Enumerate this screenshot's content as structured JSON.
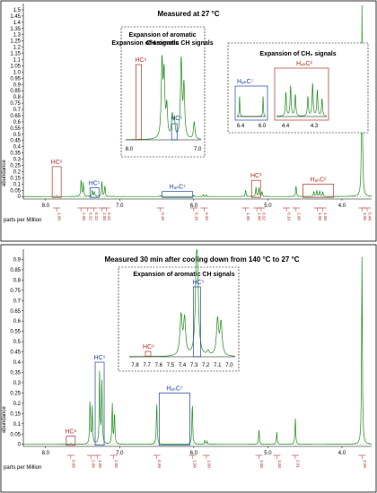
{
  "chart_data": [
    {
      "type": "line",
      "title": "Measured at 27 °C",
      "xlabel": "parts per Million",
      "ylabel": "abundance",
      "xlim": [
        8.3,
        3.6
      ],
      "ylim": [
        -0.02,
        1.55
      ],
      "x_ticks": [
        "8.0",
        "7.0",
        "6.0",
        "5.0",
        "4.0"
      ],
      "y_ticks": [
        "0",
        "0.05",
        "0.1",
        "0.15",
        "0.2",
        "0.25",
        "0.3",
        "0.35",
        "0.4",
        "0.45",
        "0.5",
        "0.55",
        "0.6",
        "0.65",
        "0.7",
        "0.75",
        "0.8",
        "0.85",
        "0.9",
        "0.95",
        "1.0",
        "1.05",
        "1.1",
        "1.15",
        "1.2",
        "1.25",
        "1.3",
        "1.35",
        "1.4",
        "1.45",
        "1.5"
      ],
      "peaks": [
        {
          "x": 7.85,
          "y": 0.005
        },
        {
          "x": 7.52,
          "y": 0.14
        },
        {
          "x": 7.49,
          "y": 0.11
        },
        {
          "x": 7.37,
          "y": 0.05
        },
        {
          "x": 7.34,
          "y": 0.04
        },
        {
          "x": 7.24,
          "y": 0.12
        },
        {
          "x": 7.2,
          "y": 0.09
        },
        {
          "x": 6.45,
          "y": 0.01
        },
        {
          "x": 6.0,
          "y": 0.012
        },
        {
          "x": 5.87,
          "y": 0.015
        },
        {
          "x": 5.83,
          "y": 0.012
        },
        {
          "x": 5.3,
          "y": 0.055
        },
        {
          "x": 5.16,
          "y": 0.08
        },
        {
          "x": 5.12,
          "y": 0.07
        },
        {
          "x": 5.08,
          "y": 0.04
        },
        {
          "x": 4.62,
          "y": 0.09
        },
        {
          "x": 4.38,
          "y": 0.04
        },
        {
          "x": 4.34,
          "y": 0.05
        },
        {
          "x": 4.3,
          "y": 0.045
        },
        {
          "x": 4.26,
          "y": 0.04
        },
        {
          "x": 3.73,
          "y": 1.55
        }
      ],
      "labels": [
        {
          "text": "HC⁶",
          "x": 7.85,
          "y": 0.24,
          "color": "red"
        },
        {
          "text": "HC⁵",
          "x": 7.34,
          "y": 0.07,
          "color": "blue"
        },
        {
          "text": "HₐₕC⁷",
          "x": 6.22,
          "y": 0.04,
          "color": "blue"
        },
        {
          "text": "HC³",
          "x": 5.16,
          "y": 0.13,
          "color": "red"
        },
        {
          "text": "HₐₕC²",
          "x": 4.32,
          "y": 0.1,
          "color": "red"
        }
      ],
      "integrals": [
        {
          "x": 7.85,
          "label": "1.00"
        },
        {
          "x": 7.52,
          "label": "2.00"
        },
        {
          "x": 7.43,
          "label": "0.32"
        },
        {
          "x": 7.35,
          "label": "0.32"
        },
        {
          "x": 7.24,
          "label": "2.00"
        },
        {
          "x": 7.18,
          "label": "0.32"
        },
        {
          "x": 6.45,
          "label": "0.16"
        },
        {
          "x": 6.0,
          "label": "0.16"
        },
        {
          "x": 5.86,
          "label": "0.32"
        },
        {
          "x": 5.3,
          "label": "1.00"
        },
        {
          "x": 5.15,
          "label": "1.00"
        },
        {
          "x": 5.09,
          "label": "0.32"
        },
        {
          "x": 4.75,
          "label": "0.16"
        },
        {
          "x": 4.62,
          "label": "2.00"
        },
        {
          "x": 4.33,
          "label": "1.00"
        },
        {
          "x": 4.26,
          "label": "1.00"
        },
        {
          "x": 3.73,
          "label": "3.00"
        },
        {
          "x": 3.66,
          "label": "0.48"
        }
      ],
      "insets": [
        {
          "title": "Expansion of aromatic CH signals",
          "x_ticks": [
            "8.0",
            "7.0"
          ],
          "labels": [
            {
              "text": "HC⁶",
              "color": "red"
            },
            {
              "text": "HC⁵",
              "color": "blue"
            }
          ]
        },
        {
          "title": "Expansion of CH₂ signals",
          "x_ticks": [
            "6.4",
            "6.0",
            "4.4",
            "4.3"
          ],
          "labels": [
            {
              "text": "HₐₕC⁷",
              "color": "blue"
            },
            {
              "text": "HₐₕC²",
              "color": "red"
            }
          ]
        }
      ]
    },
    {
      "type": "line",
      "title": "Measured 30 min after cooling down from 140  °C to 27 °C",
      "xlabel": "parts per Million",
      "ylabel": "abundance",
      "xlim": [
        8.3,
        3.6
      ],
      "ylim": [
        -0.01,
        0.95
      ],
      "x_ticks": [
        "8.0",
        "7.0",
        "6.0",
        "5.0",
        "4.0"
      ],
      "y_ticks": [
        "0",
        "0.05",
        "0.1",
        "0.15",
        "0.2",
        "0.25",
        "0.3",
        "0.35",
        "0.4",
        "0.45",
        "0.5",
        "0.55",
        "0.6",
        "0.65",
        "0.7",
        "0.75",
        "0.8",
        "0.85",
        "0.9"
      ],
      "peaks": [
        {
          "x": 7.66,
          "y": 0.005
        },
        {
          "x": 7.4,
          "y": 0.22
        },
        {
          "x": 7.37,
          "y": 0.18
        },
        {
          "x": 7.27,
          "y": 0.36
        },
        {
          "x": 7.24,
          "y": 0.3
        },
        {
          "x": 7.1,
          "y": 0.2
        },
        {
          "x": 7.07,
          "y": 0.16
        },
        {
          "x": 6.5,
          "y": 0.21
        },
        {
          "x": 6.02,
          "y": 0.21
        },
        {
          "x": 5.85,
          "y": 0.02
        },
        {
          "x": 5.82,
          "y": 0.015
        },
        {
          "x": 5.12,
          "y": 0.07
        },
        {
          "x": 4.88,
          "y": 0.06
        },
        {
          "x": 4.63,
          "y": 0.13
        },
        {
          "x": 3.73,
          "y": 0.92
        }
      ],
      "labels": [
        {
          "text": "HC⁶",
          "x": 7.66,
          "y": 0.04,
          "color": "red"
        },
        {
          "text": "HC⁵",
          "x": 7.27,
          "y": 0.4,
          "color": "blue"
        },
        {
          "text": "HₐₕC⁷",
          "x": 6.26,
          "y": 0.25,
          "color": "blue"
        }
      ],
      "integrals": [
        {
          "x": 7.66,
          "label": "0.05"
        },
        {
          "x": 7.39,
          "label": "2.00"
        },
        {
          "x": 7.3,
          "label": "1.00"
        },
        {
          "x": 7.08,
          "label": "2.00"
        },
        {
          "x": 6.5,
          "label": "0.99"
        },
        {
          "x": 6.02,
          "label": "1.00"
        },
        {
          "x": 5.83,
          "label": "1.00"
        },
        {
          "x": 5.12,
          "label": "1.00"
        },
        {
          "x": 4.88,
          "label": "1.00"
        },
        {
          "x": 4.63,
          "label": "2.01"
        },
        {
          "x": 3.73,
          "label": "3.06"
        }
      ],
      "insets": [
        {
          "title": "Expansion of aromatic CH signals",
          "x_ticks": [
            "7.8",
            "7.7",
            "7.6",
            "7.5",
            "7.4",
            "7.3",
            "7.2",
            "7.1",
            "7.0"
          ],
          "labels": [
            {
              "text": "HC⁶",
              "color": "red"
            },
            {
              "text": "HC⁵",
              "color": "blue"
            }
          ]
        }
      ]
    }
  ]
}
